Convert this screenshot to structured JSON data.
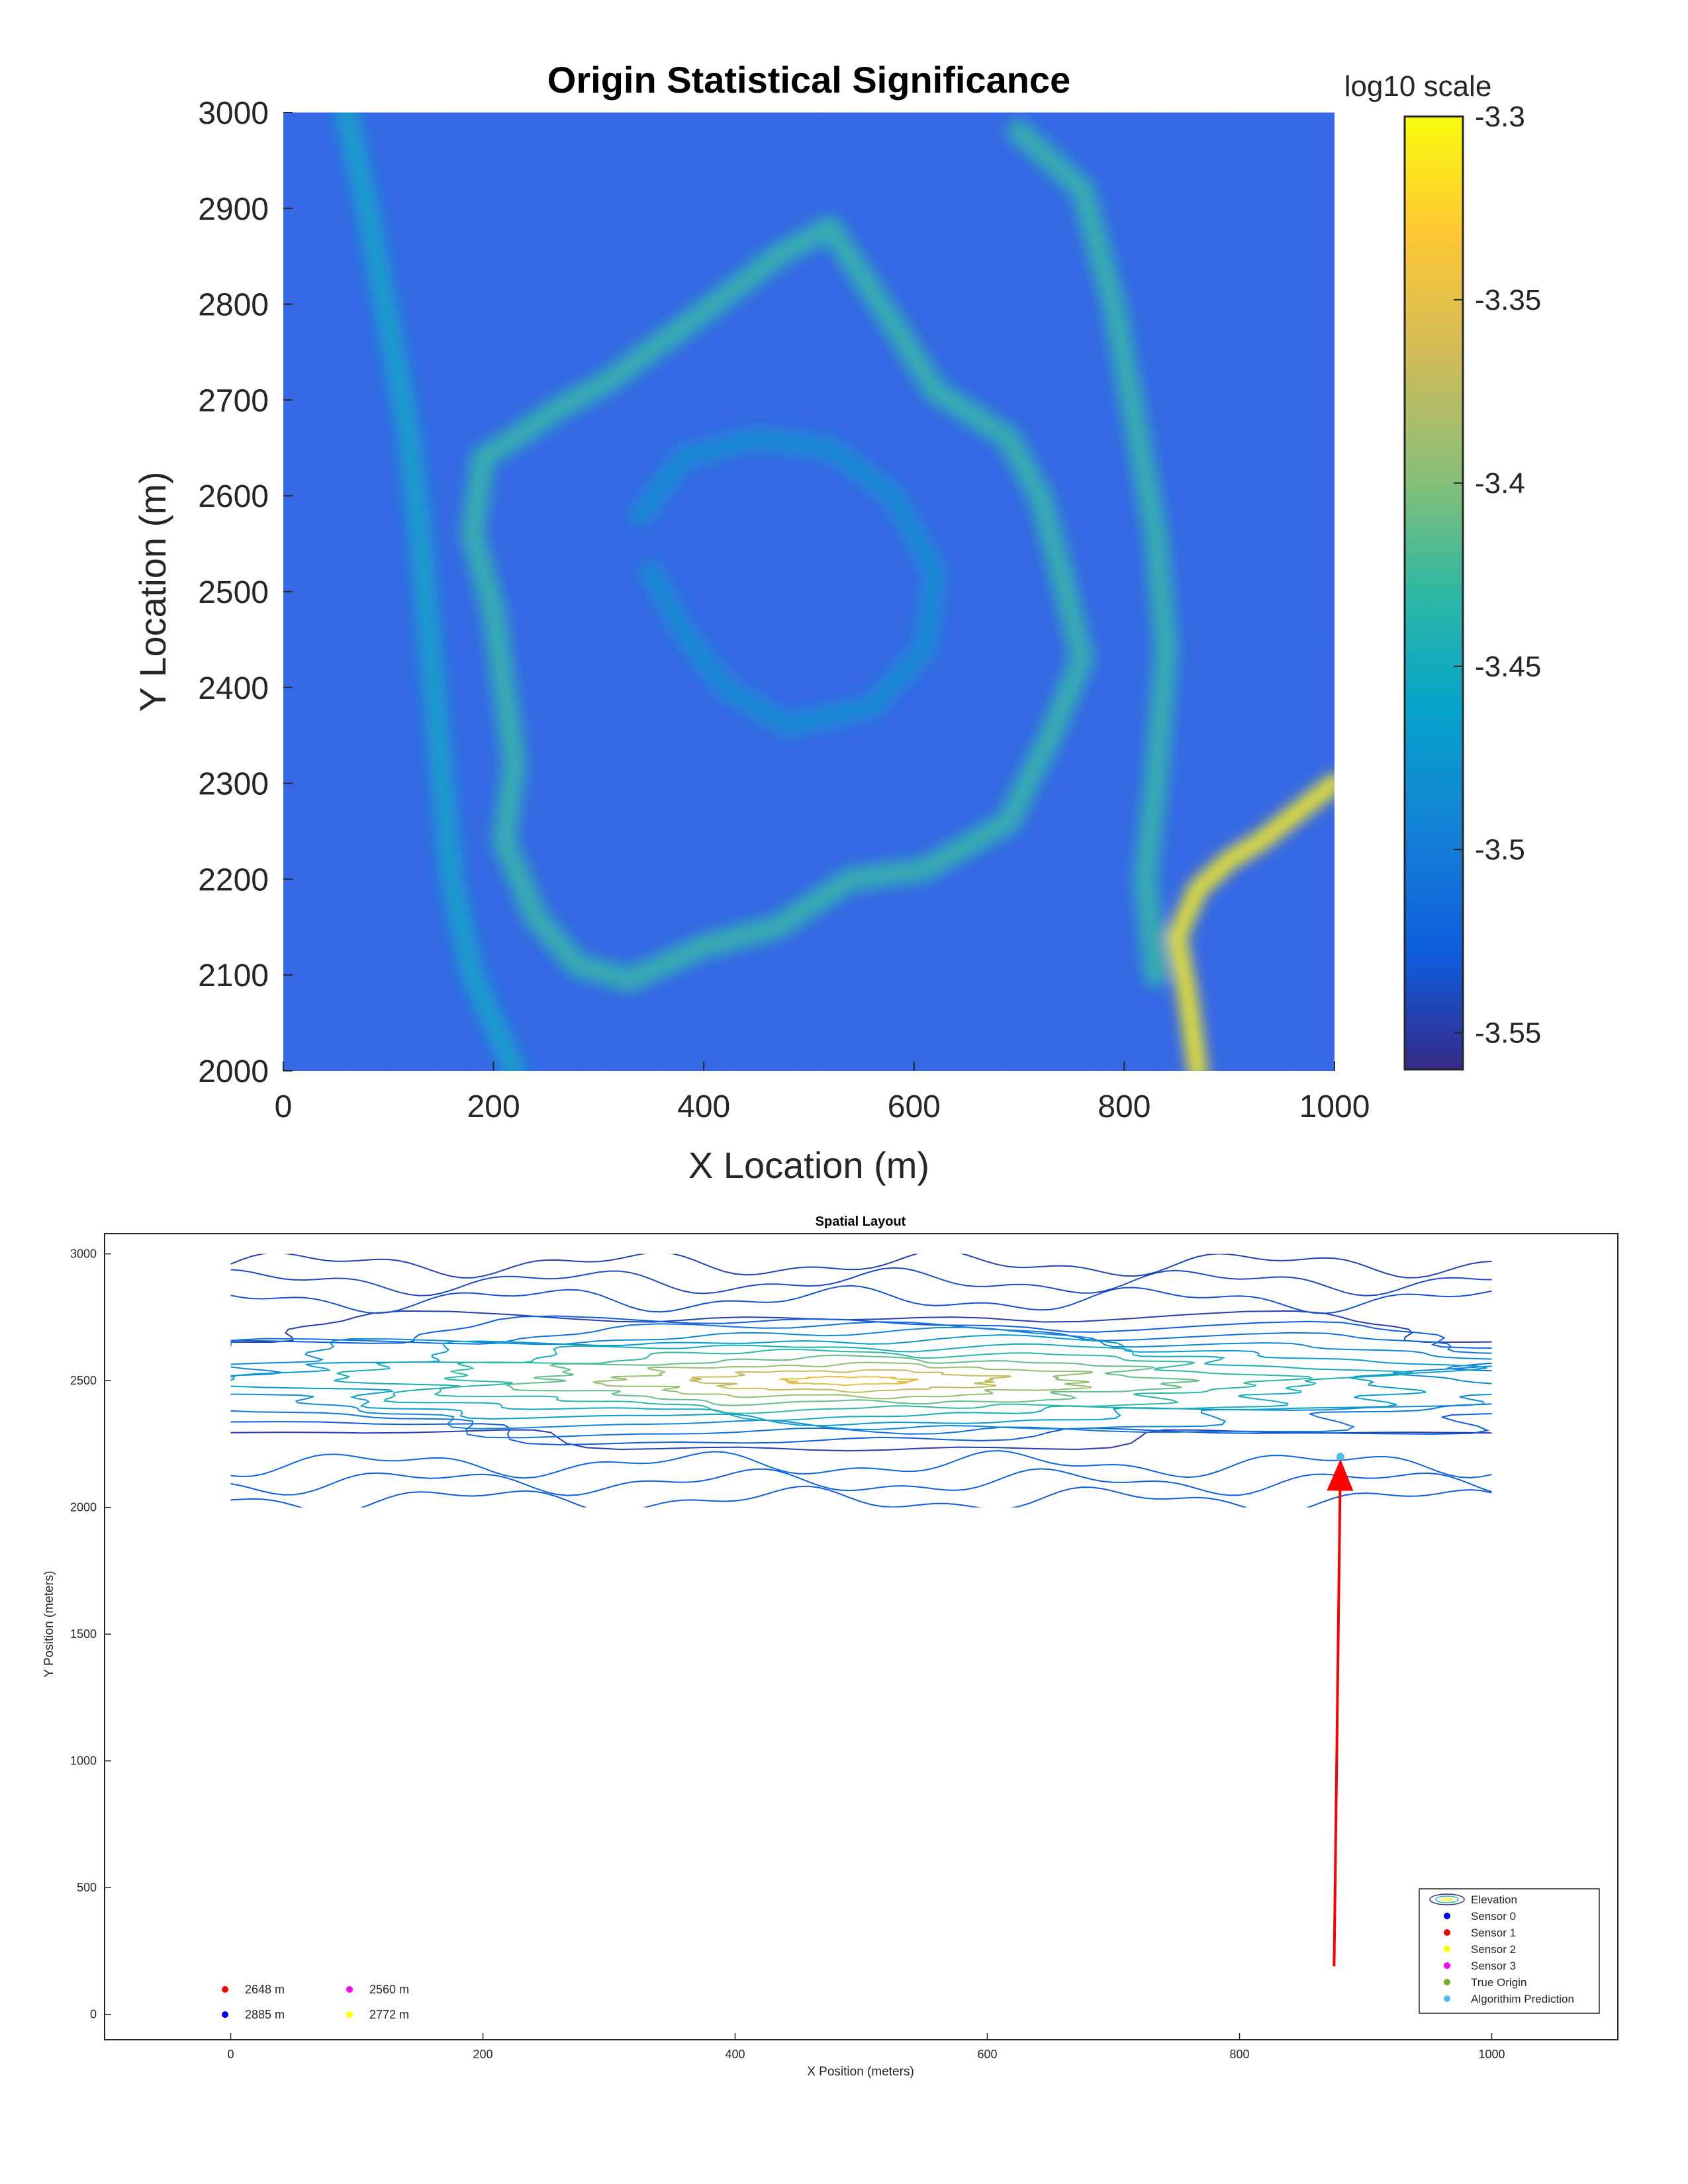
{
  "chart_data": [
    {
      "type": "heatmap",
      "title": "Origin Statistical Significance",
      "xlabel": "X Location (m)",
      "ylabel": "Y Location (m)",
      "xlim": [
        0,
        1000
      ],
      "ylim": [
        2000,
        3000
      ],
      "x_ticks": [
        0,
        200,
        400,
        600,
        800,
        1000
      ],
      "y_ticks": [
        2000,
        2100,
        2200,
        2300,
        2400,
        2500,
        2600,
        2700,
        2800,
        2900,
        3000
      ],
      "colorbar": {
        "title": "log10 scale",
        "range": [
          -3.56,
          -3.3
        ],
        "ticks": [
          -3.3,
          -3.35,
          -3.4,
          -3.45,
          -3.5,
          -3.55
        ],
        "tick_labels": [
          "-3.3",
          "-3.35",
          "-3.4",
          "-3.45",
          "-3.5",
          "-3.55"
        ],
        "colormap": "parula"
      },
      "features": [
        {
          "name": "ring",
          "points": [
            [
              190,
              2640
            ],
            [
              180,
              2560
            ],
            [
              200,
              2480
            ],
            [
              210,
              2400
            ],
            [
              220,
              2320
            ],
            [
              210,
              2240
            ],
            [
              240,
              2160
            ],
            [
              280,
              2110
            ],
            [
              330,
              2095
            ],
            [
              400,
              2130
            ],
            [
              470,
              2150
            ],
            [
              540,
              2200
            ],
            [
              610,
              2210
            ],
            [
              690,
              2260
            ],
            [
              730,
              2350
            ],
            [
              760,
              2430
            ],
            [
              740,
              2520
            ],
            [
              720,
              2600
            ],
            [
              690,
              2660
            ],
            [
              620,
              2710
            ],
            [
              580,
              2780
            ],
            [
              520,
              2880
            ],
            [
              470,
              2850
            ],
            [
              410,
              2800
            ],
            [
              360,
              2760
            ],
            [
              310,
              2720
            ],
            [
              260,
              2690
            ],
            [
              220,
              2660
            ],
            [
              190,
              2640
            ]
          ],
          "level": -3.44
        },
        {
          "name": "hotspot-ridge",
          "points": [
            [
              870,
              2000
            ],
            [
              860,
              2080
            ],
            [
              850,
              2140
            ],
            [
              870,
              2190
            ],
            [
              900,
              2220
            ],
            [
              930,
              2240
            ],
            [
              1000,
              2300
            ]
          ],
          "level": -3.31
        },
        {
          "name": "outer-ridge-east",
          "points": [
            [
              700,
              2980
            ],
            [
              760,
              2920
            ],
            [
              790,
              2800
            ],
            [
              810,
              2680
            ],
            [
              830,
              2560
            ],
            [
              840,
              2440
            ],
            [
              830,
              2300
            ],
            [
              820,
              2200
            ],
            [
              830,
              2100
            ]
          ],
          "level": -3.44
        },
        {
          "name": "outer-ridge-west",
          "points": [
            [
              60,
              3000
            ],
            [
              80,
              2900
            ],
            [
              100,
              2780
            ],
            [
              120,
              2660
            ],
            [
              130,
              2560
            ],
            [
              140,
              2440
            ],
            [
              150,
              2320
            ],
            [
              160,
              2200
            ],
            [
              180,
              2100
            ],
            [
              220,
              2000
            ]
          ],
          "level": -3.47
        },
        {
          "name": "inner-ridge",
          "points": [
            [
              340,
              2580
            ],
            [
              380,
              2640
            ],
            [
              450,
              2660
            ],
            [
              520,
              2650
            ],
            [
              580,
              2600
            ],
            [
              620,
              2520
            ],
            [
              610,
              2440
            ],
            [
              560,
              2380
            ],
            [
              480,
              2360
            ],
            [
              420,
              2400
            ],
            [
              380,
              2460
            ],
            [
              350,
              2520
            ]
          ],
          "level": -3.49
        }
      ]
    },
    {
      "type": "contour",
      "title": "Spatial Layout",
      "xlabel": "X Position (meters)",
      "ylabel": "Y Position (meters)",
      "xlim": [
        -100,
        1100
      ],
      "ylim": [
        -100,
        3080
      ],
      "x_ticks": [
        0,
        200,
        400,
        600,
        800,
        1000
      ],
      "y_ticks": [
        0,
        500,
        1000,
        1500,
        2000,
        2500,
        3000
      ],
      "contour_center": [
        490,
        2500
      ],
      "contour_extent": {
        "x": [
          0,
          1000
        ],
        "y": [
          2000,
          3000
        ]
      },
      "contour_levels": 11,
      "algorithm_prediction": {
        "x": 880,
        "y": 2200
      },
      "arrow": {
        "from": [
          875,
          190
        ],
        "to": [
          880,
          2170
        ],
        "color": "#ff0000"
      },
      "legend": {
        "location": "bottom-right",
        "entries": [
          {
            "label": "Elevation",
            "marker": "contour"
          },
          {
            "label": "Sensor 0",
            "color": "#0000ff"
          },
          {
            "label": "Sensor 1",
            "color": "#ff0000"
          },
          {
            "label": "Sensor 2",
            "color": "#ffff00"
          },
          {
            "label": "Sensor 3",
            "color": "#ff00ff"
          },
          {
            "label": "True Origin",
            "color": "#77ac30"
          },
          {
            "label": "Algorithim Prediction",
            "color": "#4dbeee"
          }
        ]
      },
      "sensor_readings": [
        {
          "label": "2648 m",
          "color": "#ff0000"
        },
        {
          "label": "2560 m",
          "color": "#ff00ff"
        },
        {
          "label": "2885 m",
          "color": "#0000ff"
        },
        {
          "label": "2772 m",
          "color": "#ffff00"
        }
      ]
    }
  ]
}
